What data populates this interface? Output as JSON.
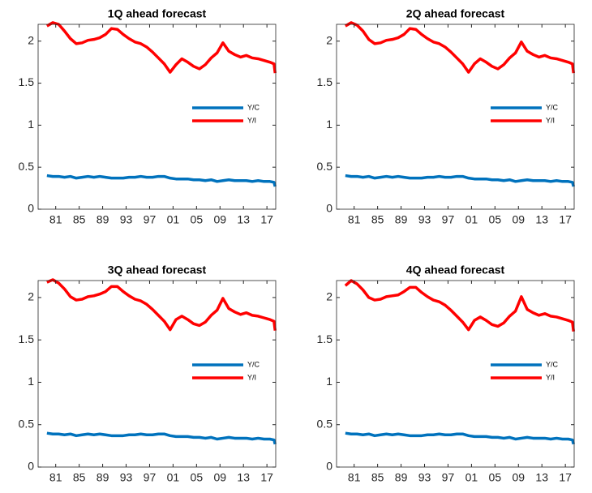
{
  "chart_data": [
    {
      "type": "line",
      "title": "1Q ahead forecast",
      "legend": "east",
      "x": [
        1979.5,
        1980.5,
        1981.5,
        1982.5,
        1983.5,
        1984.5,
        1985.5,
        1986.5,
        1987.5,
        1988.5,
        1989.5,
        1990.5,
        1991.5,
        1992.5,
        1993.5,
        1994.5,
        1995.5,
        1996.5,
        1997.5,
        1998.5,
        1999.5,
        2000.5,
        2001.5,
        2002.5,
        2003.5,
        2004.5,
        2005.5,
        2006.5,
        2007.5,
        2008.5,
        2009.5,
        2010.5,
        2011.5,
        2012.5,
        2013.5,
        2014.5,
        2015.5,
        2016.5,
        2017.5,
        2018.2,
        2018.4
      ],
      "series": [
        {
          "name": "Y/C",
          "color": "#0072BD",
          "values": [
            0.4,
            0.39,
            0.39,
            0.38,
            0.39,
            0.37,
            0.38,
            0.39,
            0.38,
            0.39,
            0.38,
            0.37,
            0.37,
            0.37,
            0.38,
            0.38,
            0.39,
            0.38,
            0.38,
            0.39,
            0.39,
            0.37,
            0.36,
            0.36,
            0.36,
            0.35,
            0.35,
            0.34,
            0.35,
            0.33,
            0.34,
            0.35,
            0.34,
            0.34,
            0.34,
            0.33,
            0.34,
            0.33,
            0.33,
            0.32,
            0.27
          ]
        },
        {
          "name": "Y/I",
          "color": "#FF0000",
          "values": [
            2.18,
            2.22,
            2.2,
            2.12,
            2.03,
            1.97,
            1.98,
            2.01,
            2.02,
            2.04,
            2.08,
            2.15,
            2.14,
            2.08,
            2.03,
            1.99,
            1.97,
            1.93,
            1.87,
            1.8,
            1.73,
            1.63,
            1.72,
            1.79,
            1.75,
            1.7,
            1.67,
            1.72,
            1.8,
            1.86,
            1.98,
            1.88,
            1.84,
            1.81,
            1.83,
            1.8,
            1.79,
            1.77,
            1.75,
            1.73,
            1.62
          ]
        }
      ],
      "xlim": [
        1978,
        2018.5
      ],
      "xticks": [
        {
          "value": 1981,
          "label": "81"
        },
        {
          "value": 1985,
          "label": "85"
        },
        {
          "value": 1989,
          "label": "89"
        },
        {
          "value": 1993,
          "label": "93"
        },
        {
          "value": 1997,
          "label": "97"
        },
        {
          "value": 2001,
          "label": "01"
        },
        {
          "value": 2005,
          "label": "05"
        },
        {
          "value": 2009,
          "label": "09"
        },
        {
          "value": 2013,
          "label": "13"
        },
        {
          "value": 2017,
          "label": "17"
        }
      ],
      "ylim": [
        0,
        2.2
      ],
      "yticks": [
        0,
        0.5,
        1,
        1.5,
        2
      ]
    },
    {
      "type": "line",
      "title": "2Q ahead forecast",
      "legend": "east",
      "x": [
        1979.5,
        1980.5,
        1981.5,
        1982.5,
        1983.5,
        1984.5,
        1985.5,
        1986.5,
        1987.5,
        1988.5,
        1989.5,
        1990.5,
        1991.5,
        1992.5,
        1993.5,
        1994.5,
        1995.5,
        1996.5,
        1997.5,
        1998.5,
        1999.5,
        2000.5,
        2001.5,
        2002.5,
        2003.5,
        2004.5,
        2005.5,
        2006.5,
        2007.5,
        2008.5,
        2009.5,
        2010.5,
        2011.5,
        2012.5,
        2013.5,
        2014.5,
        2015.5,
        2016.5,
        2017.5,
        2018.2,
        2018.4
      ],
      "series": [
        {
          "name": "Y/C",
          "color": "#0072BD",
          "values": [
            0.4,
            0.39,
            0.39,
            0.38,
            0.39,
            0.37,
            0.38,
            0.39,
            0.38,
            0.39,
            0.38,
            0.37,
            0.37,
            0.37,
            0.38,
            0.38,
            0.39,
            0.38,
            0.38,
            0.39,
            0.39,
            0.37,
            0.36,
            0.36,
            0.36,
            0.35,
            0.35,
            0.34,
            0.35,
            0.33,
            0.34,
            0.35,
            0.34,
            0.34,
            0.34,
            0.33,
            0.34,
            0.33,
            0.33,
            0.32,
            0.27
          ]
        },
        {
          "name": "Y/I",
          "color": "#FF0000",
          "values": [
            2.18,
            2.22,
            2.19,
            2.12,
            2.02,
            1.97,
            1.98,
            2.01,
            2.02,
            2.04,
            2.08,
            2.15,
            2.14,
            2.08,
            2.03,
            1.99,
            1.97,
            1.93,
            1.87,
            1.8,
            1.73,
            1.63,
            1.73,
            1.79,
            1.75,
            1.7,
            1.67,
            1.72,
            1.8,
            1.86,
            1.99,
            1.88,
            1.84,
            1.81,
            1.83,
            1.8,
            1.79,
            1.77,
            1.75,
            1.73,
            1.62
          ]
        }
      ],
      "xlim": [
        1978,
        2018.5
      ],
      "xticks": [
        {
          "value": 1981,
          "label": "81"
        },
        {
          "value": 1985,
          "label": "85"
        },
        {
          "value": 1989,
          "label": "89"
        },
        {
          "value": 1993,
          "label": "93"
        },
        {
          "value": 1997,
          "label": "97"
        },
        {
          "value": 2001,
          "label": "01"
        },
        {
          "value": 2005,
          "label": "05"
        },
        {
          "value": 2009,
          "label": "09"
        },
        {
          "value": 2013,
          "label": "13"
        },
        {
          "value": 2017,
          "label": "17"
        }
      ],
      "ylim": [
        0,
        2.2
      ],
      "yticks": [
        0,
        0.5,
        1,
        1.5,
        2
      ]
    },
    {
      "type": "line",
      "title": "3Q ahead forecast",
      "legend": "east",
      "x": [
        1979.5,
        1980.5,
        1981.5,
        1982.5,
        1983.5,
        1984.5,
        1985.5,
        1986.5,
        1987.5,
        1988.5,
        1989.5,
        1990.5,
        1991.5,
        1992.5,
        1993.5,
        1994.5,
        1995.5,
        1996.5,
        1997.5,
        1998.5,
        1999.5,
        2000.5,
        2001.5,
        2002.5,
        2003.5,
        2004.5,
        2005.5,
        2006.5,
        2007.5,
        2008.5,
        2009.5,
        2010.5,
        2011.5,
        2012.5,
        2013.5,
        2014.5,
        2015.5,
        2016.5,
        2017.5,
        2018.2,
        2018.4
      ],
      "series": [
        {
          "name": "Y/C",
          "color": "#0072BD",
          "values": [
            0.4,
            0.39,
            0.39,
            0.38,
            0.39,
            0.37,
            0.38,
            0.39,
            0.38,
            0.39,
            0.38,
            0.37,
            0.37,
            0.37,
            0.38,
            0.38,
            0.39,
            0.38,
            0.38,
            0.39,
            0.39,
            0.37,
            0.36,
            0.36,
            0.36,
            0.35,
            0.35,
            0.34,
            0.35,
            0.33,
            0.34,
            0.35,
            0.34,
            0.34,
            0.34,
            0.33,
            0.34,
            0.33,
            0.33,
            0.32,
            0.27
          ]
        },
        {
          "name": "Y/I",
          "color": "#FF0000",
          "values": [
            2.18,
            2.21,
            2.17,
            2.1,
            2.01,
            1.97,
            1.98,
            2.01,
            2.02,
            2.04,
            2.07,
            2.13,
            2.13,
            2.07,
            2.02,
            1.98,
            1.96,
            1.92,
            1.86,
            1.79,
            1.72,
            1.62,
            1.74,
            1.78,
            1.74,
            1.69,
            1.67,
            1.71,
            1.79,
            1.85,
            1.99,
            1.87,
            1.83,
            1.8,
            1.82,
            1.79,
            1.78,
            1.76,
            1.74,
            1.72,
            1.61
          ]
        }
      ],
      "xlim": [
        1978,
        2018.5
      ],
      "xticks": [
        {
          "value": 1981,
          "label": "81"
        },
        {
          "value": 1985,
          "label": "85"
        },
        {
          "value": 1989,
          "label": "89"
        },
        {
          "value": 1993,
          "label": "93"
        },
        {
          "value": 1997,
          "label": "97"
        },
        {
          "value": 2001,
          "label": "01"
        },
        {
          "value": 2005,
          "label": "05"
        },
        {
          "value": 2009,
          "label": "09"
        },
        {
          "value": 2013,
          "label": "13"
        },
        {
          "value": 2017,
          "label": "17"
        }
      ],
      "ylim": [
        0,
        2.2
      ],
      "yticks": [
        0,
        0.5,
        1,
        1.5,
        2
      ]
    },
    {
      "type": "line",
      "title": "4Q ahead forecast",
      "legend": "east",
      "x": [
        1979.5,
        1980.5,
        1981.5,
        1982.5,
        1983.5,
        1984.5,
        1985.5,
        1986.5,
        1987.5,
        1988.5,
        1989.5,
        1990.5,
        1991.5,
        1992.5,
        1993.5,
        1994.5,
        1995.5,
        1996.5,
        1997.5,
        1998.5,
        1999.5,
        2000.5,
        2001.5,
        2002.5,
        2003.5,
        2004.5,
        2005.5,
        2006.5,
        2007.5,
        2008.5,
        2009.5,
        2010.5,
        2011.5,
        2012.5,
        2013.5,
        2014.5,
        2015.5,
        2016.5,
        2017.5,
        2018.2,
        2018.4
      ],
      "series": [
        {
          "name": "Y/C",
          "color": "#0072BD",
          "values": [
            0.4,
            0.39,
            0.39,
            0.38,
            0.39,
            0.37,
            0.38,
            0.39,
            0.38,
            0.39,
            0.38,
            0.37,
            0.37,
            0.37,
            0.38,
            0.38,
            0.39,
            0.38,
            0.38,
            0.39,
            0.39,
            0.37,
            0.36,
            0.36,
            0.36,
            0.35,
            0.35,
            0.34,
            0.35,
            0.33,
            0.34,
            0.35,
            0.34,
            0.34,
            0.34,
            0.33,
            0.34,
            0.33,
            0.33,
            0.32,
            0.27
          ]
        },
        {
          "name": "Y/I",
          "color": "#FF0000",
          "values": [
            2.14,
            2.2,
            2.16,
            2.09,
            2.0,
            1.97,
            1.98,
            2.01,
            2.02,
            2.03,
            2.07,
            2.12,
            2.12,
            2.06,
            2.01,
            1.97,
            1.95,
            1.91,
            1.85,
            1.78,
            1.71,
            1.62,
            1.73,
            1.77,
            1.73,
            1.68,
            1.66,
            1.7,
            1.78,
            1.84,
            2.01,
            1.86,
            1.82,
            1.79,
            1.81,
            1.78,
            1.77,
            1.75,
            1.73,
            1.71,
            1.6
          ]
        }
      ],
      "xlim": [
        1978,
        2018.5
      ],
      "xticks": [
        {
          "value": 1981,
          "label": "81"
        },
        {
          "value": 1985,
          "label": "85"
        },
        {
          "value": 1989,
          "label": "89"
        },
        {
          "value": 1993,
          "label": "93"
        },
        {
          "value": 1997,
          "label": "97"
        },
        {
          "value": 2001,
          "label": "01"
        },
        {
          "value": 2005,
          "label": "05"
        },
        {
          "value": 2009,
          "label": "09"
        },
        {
          "value": 2013,
          "label": "13"
        },
        {
          "value": 2017,
          "label": "17"
        }
      ],
      "ylim": [
        0,
        2.2
      ],
      "yticks": [
        0,
        0.5,
        1,
        1.5,
        2
      ]
    }
  ]
}
